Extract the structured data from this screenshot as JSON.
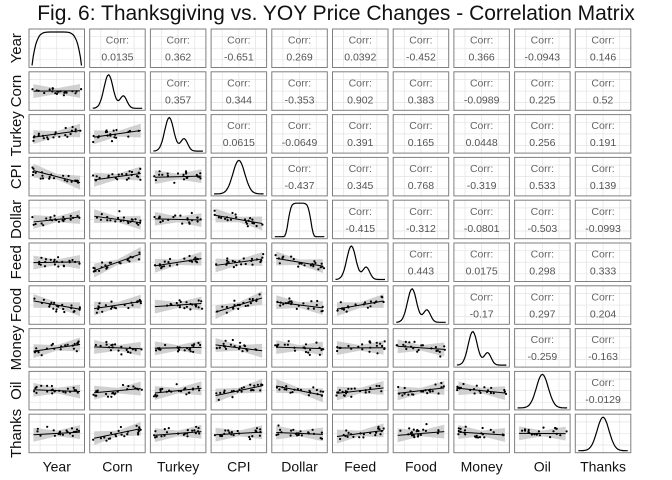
{
  "title": "Fig. 6: Thanksgiving vs. YOY Price Changes - Correlation Matrix",
  "chart_data": {
    "type": "scatter-matrix",
    "variables": [
      "Year",
      "Corn",
      "Turkey",
      "CPI",
      "Dollar",
      "Feed",
      "Food",
      "Money",
      "Oil",
      "Thanks"
    ],
    "corr_label": "Corr:",
    "correlations": [
      [
        "",
        "0.0135",
        "0.362",
        "-0.651",
        "0.269",
        "0.0392",
        "-0.452",
        "0.366",
        "-0.0943",
        "0.146"
      ],
      [
        "",
        "",
        "0.357",
        "0.344",
        "-0.353",
        "0.902",
        "0.383",
        "-0.0989",
        "0.225",
        "0.52"
      ],
      [
        "",
        "",
        "",
        "0.0615",
        "-0.0649",
        "0.391",
        "0.165",
        "0.0448",
        "0.256",
        "0.191"
      ],
      [
        "",
        "",
        "",
        "",
        "-0.437",
        "0.345",
        "0.768",
        "-0.319",
        "0.533",
        "0.139"
      ],
      [
        "",
        "",
        "",
        "",
        "",
        "-0.415",
        "-0.312",
        "-0.0801",
        "-0.503",
        "-0.0993"
      ],
      [
        "",
        "",
        "",
        "",
        "",
        "",
        "0.443",
        "0.0175",
        "0.298",
        "0.333"
      ],
      [
        "",
        "",
        "",
        "",
        "",
        "",
        "",
        "-0.17",
        "0.297",
        "0.204"
      ],
      [
        "",
        "",
        "",
        "",
        "",
        "",
        "",
        "",
        "-0.259",
        "-0.163"
      ],
      [
        "",
        "",
        "",
        "",
        "",
        "",
        "",
        "",
        "",
        "-0.0129"
      ],
      [
        "",
        "",
        "",
        "",
        "",
        "",
        "",
        "",
        "",
        ""
      ]
    ],
    "panel_types": {
      "upper": "correlation-text",
      "diagonal": "density",
      "lower": "scatter-with-linear-fit-and-confidence-band"
    },
    "density_shapes": {
      "Year": "uniform",
      "Corn": "right-skewed",
      "Turkey": "right-skewed",
      "CPI": "unimodal",
      "Dollar": "flat-topped",
      "Feed": "right-skewed",
      "Food": "right-skewed",
      "Money": "right-skewed",
      "Oil": "unimodal",
      "Thanks": "unimodal"
    },
    "grid": true,
    "colors": {
      "panel_border": "#7f7f7f",
      "grid": "#e3e3e3",
      "points": "#000000",
      "band": "#c8c8c8",
      "corr_text": "#555555"
    }
  }
}
